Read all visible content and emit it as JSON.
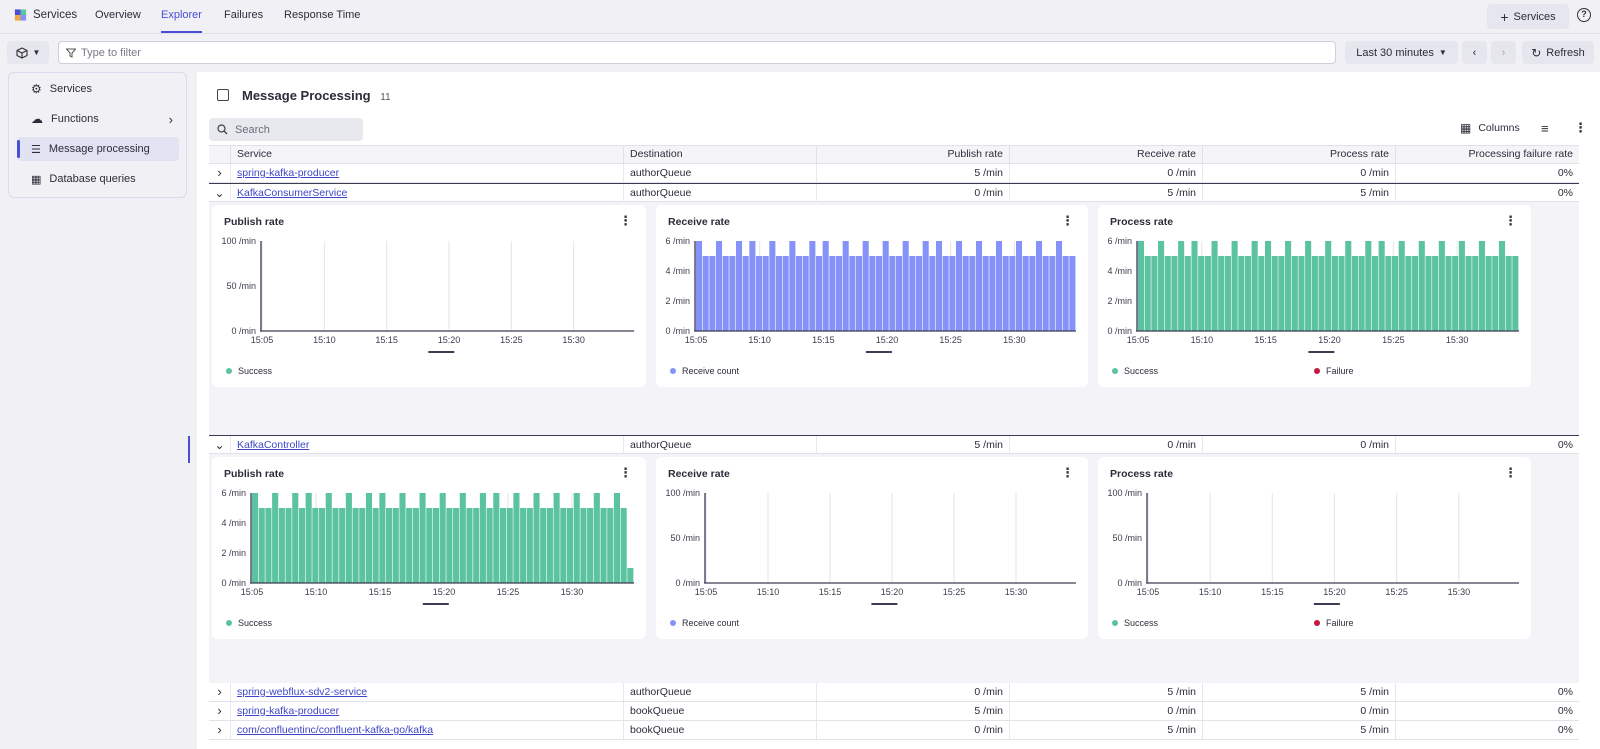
{
  "app": {
    "title": "Services"
  },
  "tabs": [
    {
      "label": "Overview",
      "active": false
    },
    {
      "label": "Explorer",
      "active": true
    },
    {
      "label": "Failures",
      "active": false
    },
    {
      "label": "Response Time",
      "active": false
    }
  ],
  "topbar": {
    "add_services_label": "Services",
    "help_icon": "help-icon"
  },
  "filter": {
    "placeholder": "Type to filter",
    "timeframe": "Last 30 minutes",
    "refresh_label": "Refresh"
  },
  "sidebar": {
    "items": [
      {
        "label": "Services",
        "icon": "services-icon"
      },
      {
        "label": "Functions",
        "icon": "cloud-icon"
      },
      {
        "label": "Message processing",
        "icon": "message-icon",
        "selected": true
      },
      {
        "label": "Database queries",
        "icon": "database-icon"
      }
    ]
  },
  "main": {
    "title": "Message Processing",
    "count": "11",
    "search_placeholder": "Search",
    "columns_label": "Columns",
    "headers": [
      "Service",
      "Destination",
      "Publish rate",
      "Receive rate",
      "Process rate",
      "Processing failure rate"
    ],
    "rows": [
      {
        "service": "spring-kafka-producer",
        "destination": "authorQueue",
        "publish": "5 /min",
        "receive": "0 /min",
        "process": "0 /min",
        "failure": "0%",
        "expanded": false
      },
      {
        "service": "KafkaConsumerService",
        "destination": "authorQueue",
        "publish": "0 /min",
        "receive": "5 /min",
        "process": "5 /min",
        "failure": "0%",
        "expanded": true
      },
      {
        "service": "KafkaController",
        "destination": "authorQueue",
        "publish": "5 /min",
        "receive": "0 /min",
        "process": "0 /min",
        "failure": "0%",
        "expanded": true
      },
      {
        "service": "spring-webflux-sdv2-service",
        "destination": "authorQueue",
        "publish": "0 /min",
        "receive": "5 /min",
        "process": "5 /min",
        "failure": "0%",
        "expanded": false
      },
      {
        "service": "spring-kafka-producer",
        "destination": "bookQueue",
        "publish": "5 /min",
        "receive": "0 /min",
        "process": "0 /min",
        "failure": "0%",
        "expanded": false
      },
      {
        "service": "com/confluentinc/confluent-kafka-go/kafka",
        "destination": "bookQueue",
        "publish": "0 /min",
        "receive": "5 /min",
        "process": "5 /min",
        "failure": "0%",
        "expanded": false
      }
    ]
  },
  "colors": {
    "success": "#5cc3a0",
    "receive": "#8592f7",
    "failure": "#c4183c",
    "accent": "#4a4ed6"
  },
  "chart_data": [
    {
      "group": "KafkaConsumerService",
      "type": "bar",
      "title": "Publish rate",
      "y_ticks": [
        "100 /min",
        "50 /min",
        "0 /min"
      ],
      "ylim": [
        0,
        100
      ],
      "x_ticks": [
        "15:05",
        "15:10",
        "15:15",
        "15:20",
        "15:25",
        "15:30"
      ],
      "series": [
        {
          "name": "Success",
          "color": "#5cc3a0",
          "values": []
        }
      ]
    },
    {
      "group": "KafkaConsumerService",
      "type": "bar",
      "title": "Receive rate",
      "y_ticks": [
        "6 /min",
        "4 /min",
        "2 /min",
        "0 /min"
      ],
      "ylim": [
        0,
        6
      ],
      "x_ticks": [
        "15:05",
        "15:10",
        "15:15",
        "15:20",
        "15:25",
        "15:30"
      ],
      "series": [
        {
          "name": "Receive count",
          "color": "#8592f7",
          "values": [
            6,
            5,
            5,
            6,
            5,
            5,
            6,
            5,
            6,
            5,
            5,
            6,
            5,
            5,
            6,
            5,
            5,
            6,
            5,
            6,
            5,
            5,
            6,
            5,
            5,
            6,
            5,
            5,
            6,
            5,
            5,
            6,
            5,
            5,
            6,
            5,
            6,
            5,
            5,
            6,
            5,
            5,
            6,
            5,
            5,
            6,
            5,
            5,
            6,
            5,
            5,
            6,
            5,
            5,
            6,
            5,
            5
          ]
        }
      ]
    },
    {
      "group": "KafkaConsumerService",
      "type": "bar",
      "title": "Process rate",
      "y_ticks": [
        "6 /min",
        "4 /min",
        "2 /min",
        "0 /min"
      ],
      "ylim": [
        0,
        6
      ],
      "x_ticks": [
        "15:05",
        "15:10",
        "15:15",
        "15:20",
        "15:25",
        "15:30"
      ],
      "series": [
        {
          "name": "Success",
          "color": "#5cc3a0",
          "values": [
            6,
            5,
            5,
            6,
            5,
            5,
            6,
            5,
            6,
            5,
            5,
            6,
            5,
            5,
            6,
            5,
            5,
            6,
            5,
            6,
            5,
            5,
            6,
            5,
            5,
            6,
            5,
            5,
            6,
            5,
            5,
            6,
            5,
            5,
            6,
            5,
            6,
            5,
            5,
            6,
            5,
            5,
            6,
            5,
            5,
            6,
            5,
            5,
            6,
            5,
            5,
            6,
            5,
            5,
            6,
            5,
            5
          ]
        },
        {
          "name": "Failure",
          "color": "#c4183c",
          "values": []
        }
      ]
    },
    {
      "group": "KafkaController",
      "type": "bar",
      "title": "Publish rate",
      "y_ticks": [
        "6 /min",
        "4 /min",
        "2 /min",
        "0 /min"
      ],
      "ylim": [
        0,
        6
      ],
      "x_ticks": [
        "15:05",
        "15:10",
        "15:15",
        "15:20",
        "15:25",
        "15:30"
      ],
      "series": [
        {
          "name": "Success",
          "color": "#5cc3a0",
          "values": [
            6,
            5,
            5,
            6,
            5,
            5,
            6,
            5,
            6,
            5,
            5,
            6,
            5,
            5,
            6,
            5,
            5,
            6,
            5,
            6,
            5,
            5,
            6,
            5,
            5,
            6,
            5,
            5,
            6,
            5,
            5,
            6,
            5,
            5,
            6,
            5,
            6,
            5,
            5,
            6,
            5,
            5,
            6,
            5,
            5,
            6,
            5,
            5,
            6,
            5,
            5,
            6,
            5,
            5,
            6,
            5,
            1
          ]
        }
      ]
    },
    {
      "group": "KafkaController",
      "type": "bar",
      "title": "Receive rate",
      "y_ticks": [
        "100 /min",
        "50 /min",
        "0 /min"
      ],
      "ylim": [
        0,
        100
      ],
      "x_ticks": [
        "15:05",
        "15:10",
        "15:15",
        "15:20",
        "15:25",
        "15:30"
      ],
      "series": [
        {
          "name": "Receive count",
          "color": "#8592f7",
          "values": []
        }
      ]
    },
    {
      "group": "KafkaController",
      "type": "bar",
      "title": "Process rate",
      "y_ticks": [
        "100 /min",
        "50 /min",
        "0 /min"
      ],
      "ylim": [
        0,
        100
      ],
      "x_ticks": [
        "15:05",
        "15:10",
        "15:15",
        "15:20",
        "15:25",
        "15:30"
      ],
      "series": [
        {
          "name": "Success",
          "color": "#5cc3a0",
          "values": []
        },
        {
          "name": "Failure",
          "color": "#c4183c",
          "values": []
        }
      ]
    }
  ]
}
